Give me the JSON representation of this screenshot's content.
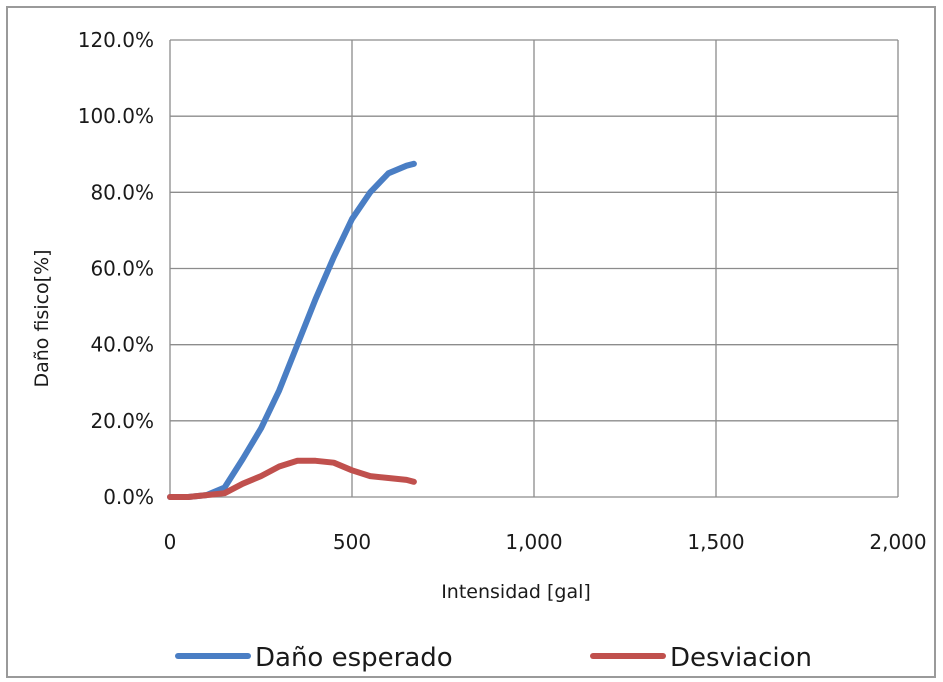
{
  "chart_data": {
    "type": "line",
    "title": "",
    "xlabel": "Intensidad [gal]",
    "ylabel": "Daño fisico[%]",
    "xlim": [
      0,
      2000
    ],
    "ylim": [
      0,
      120
    ],
    "x_ticks": [
      "0",
      "500",
      "1,000",
      "1,500",
      "2,000"
    ],
    "y_ticks": [
      "0.0%",
      "20.0%",
      "40.0%",
      "60.0%",
      "80.0%",
      "100.0%",
      "120.0%"
    ],
    "x_tick_values": [
      0,
      500,
      1000,
      1500,
      2000
    ],
    "y_tick_values": [
      0,
      20,
      40,
      60,
      80,
      100,
      120
    ],
    "grid": true,
    "legend_position": "bottom",
    "series": [
      {
        "name": "Daño esperado",
        "color": "#4a7ec4",
        "x": [
          0,
          50,
          100,
          150,
          200,
          250,
          300,
          350,
          400,
          450,
          500,
          550,
          600,
          650,
          670
        ],
        "y": [
          0,
          0,
          0.5,
          2.5,
          10,
          18,
          28,
          40,
          52,
          63,
          73,
          80,
          85,
          87,
          87.5
        ]
      },
      {
        "name": "Desviacion",
        "color": "#c0504d",
        "x": [
          0,
          50,
          100,
          150,
          200,
          250,
          300,
          350,
          400,
          450,
          500,
          550,
          600,
          650,
          670
        ],
        "y": [
          0,
          0,
          0.5,
          1,
          3.5,
          5.5,
          8,
          9.5,
          9.5,
          9,
          7,
          5.5,
          5,
          4.5,
          4
        ]
      }
    ]
  }
}
